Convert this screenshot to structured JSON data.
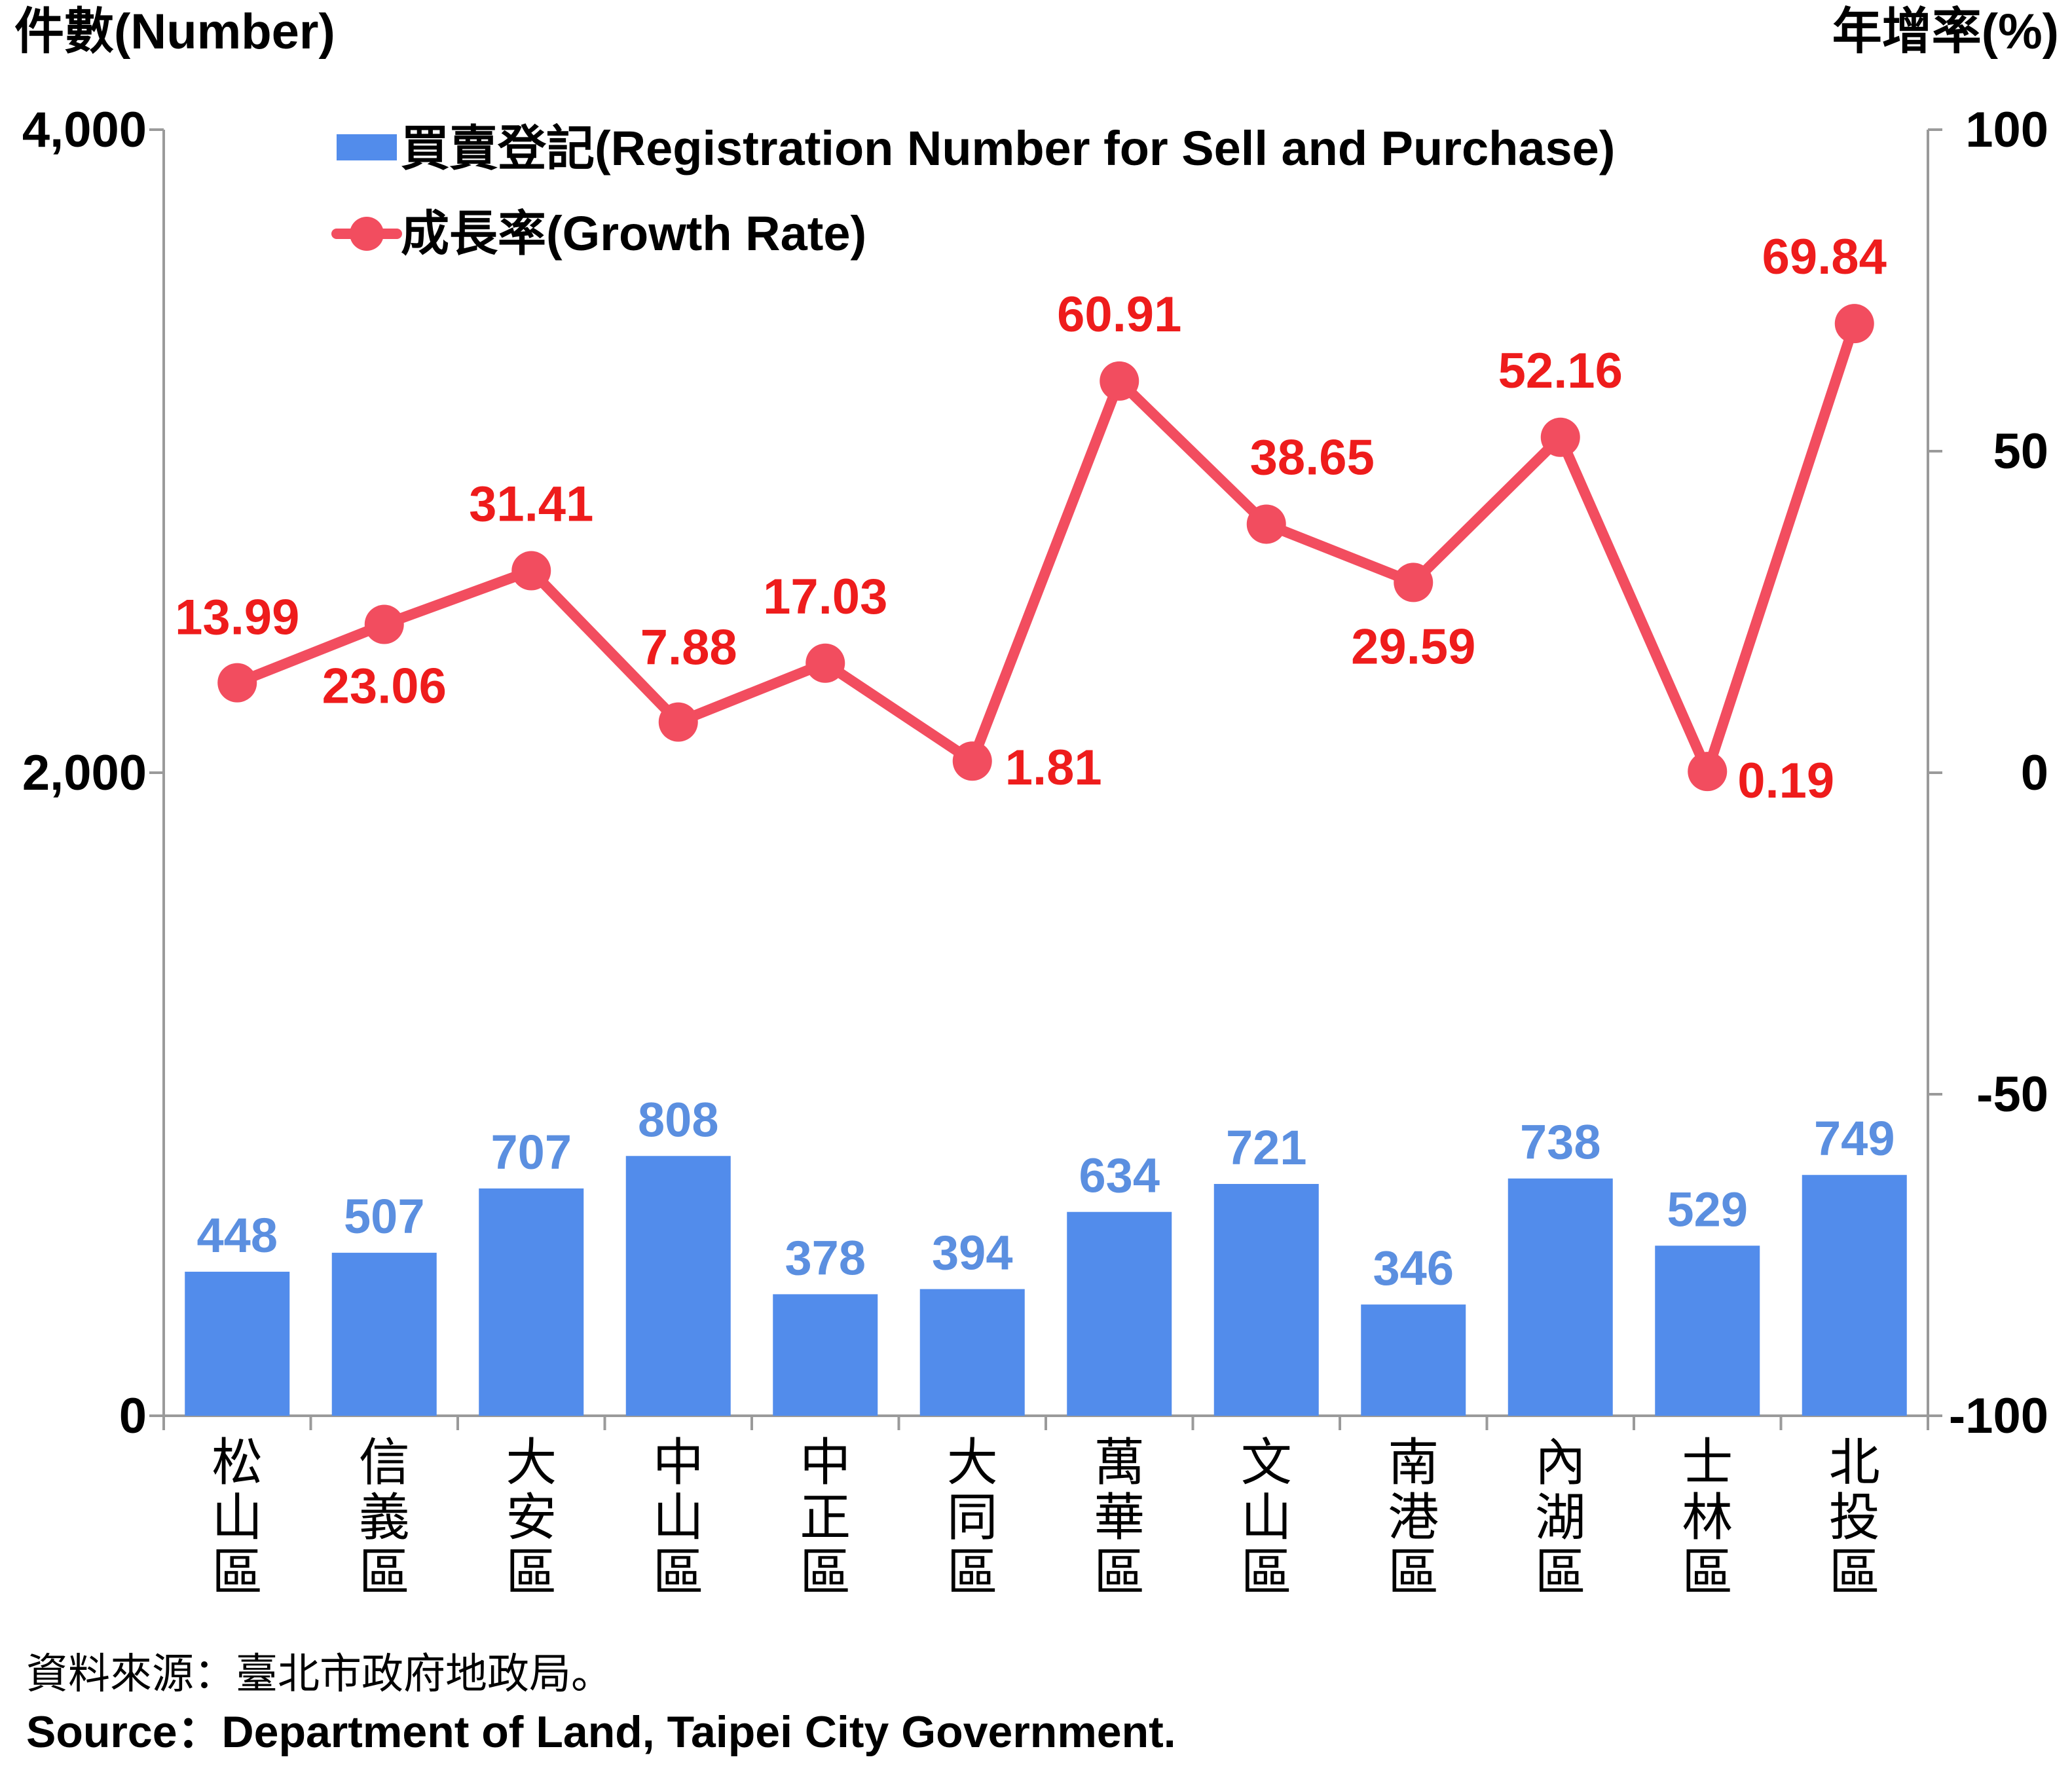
{
  "chart_data": {
    "type": "bar+line",
    "y_left_label": "件數(Number)",
    "y_right_label": "年增率(%)",
    "y_left_range": [
      0,
      4000
    ],
    "y_left_ticks": [
      "0",
      "2,000",
      "4,000"
    ],
    "y_right_range": [
      -100,
      100
    ],
    "y_right_ticks": [
      "-100",
      "-50",
      "0",
      "50",
      "100"
    ],
    "categories": [
      "松山區",
      "信義區",
      "大安區",
      "中山區",
      "中正區",
      "大同區",
      "萬華區",
      "文山區",
      "南港區",
      "內湖區",
      "士林區",
      "北投區"
    ],
    "series": [
      {
        "name": "買賣登記(Registration Number for Sell and Purchase)",
        "type": "bar",
        "axis": "left",
        "color": "#528ceb",
        "label_color": "#5b8fe0",
        "values": [
          448,
          507,
          707,
          808,
          378,
          394,
          634,
          721,
          346,
          738,
          529,
          749
        ]
      },
      {
        "name": "成長率(Growth Rate)",
        "type": "line",
        "axis": "right",
        "color": "#f24d5f",
        "label_color": "#ee1c1c",
        "values": [
          13.99,
          23.06,
          31.41,
          7.88,
          17.03,
          1.81,
          60.91,
          38.65,
          29.59,
          52.16,
          0.19,
          69.84
        ],
        "labels": [
          "13.99",
          "23.06",
          "31.41",
          "7.88",
          "17.03",
          "1.81",
          "60.91",
          "38.65",
          "29.59",
          "52.16",
          "0.19",
          "69.84"
        ]
      }
    ],
    "legend_position": "top-left",
    "grid": false
  },
  "source": {
    "line1": "資料來源：臺北市政府地政局。",
    "line2": "Source：Department of Land, Taipei City Government."
  }
}
